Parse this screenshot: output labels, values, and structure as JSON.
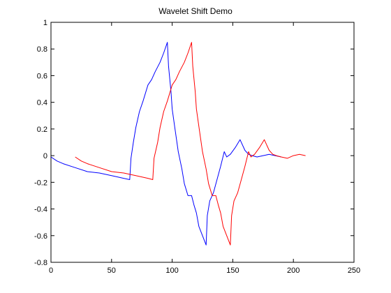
{
  "chart_data": {
    "type": "line",
    "title": "Wavelet Shift Demo",
    "xlabel": "",
    "ylabel": "",
    "xlim": [
      0,
      250
    ],
    "ylim": [
      -0.8,
      1
    ],
    "xticks": [
      0,
      50,
      100,
      150,
      200,
      250
    ],
    "yticks": [
      -0.8,
      -0.6,
      -0.4,
      -0.2,
      0,
      0.2,
      0.4,
      0.6,
      0.8,
      1
    ],
    "grid": false,
    "legend": "none",
    "series": [
      {
        "color": "#0000ff",
        "x": [
          0,
          5,
          10,
          20,
          30,
          40,
          50,
          60,
          65,
          66,
          68,
          70,
          73,
          76,
          80,
          83,
          86,
          90,
          93,
          96,
          97,
          99,
          100,
          102,
          105,
          108,
          110,
          113,
          116,
          118,
          120,
          122,
          125,
          128,
          129,
          131,
          134,
          137,
          140,
          143,
          145,
          148,
          152,
          156,
          160,
          163,
          166,
          170,
          175,
          180,
          185,
          190
        ],
        "values": [
          -0.01,
          -0.04,
          -0.06,
          -0.09,
          -0.12,
          -0.13,
          -0.15,
          -0.17,
          -0.18,
          -0.02,
          0.1,
          0.21,
          0.33,
          0.41,
          0.53,
          0.57,
          0.63,
          0.7,
          0.77,
          0.85,
          0.67,
          0.48,
          0.35,
          0.22,
          0.03,
          -0.1,
          -0.21,
          -0.3,
          -0.3,
          -0.37,
          -0.43,
          -0.53,
          -0.6,
          -0.67,
          -0.45,
          -0.34,
          -0.28,
          -0.18,
          -0.08,
          0.03,
          -0.01,
          0.01,
          0.06,
          0.12,
          0.04,
          0.01,
          0.0,
          -0.01,
          0.0,
          0.01,
          0.0,
          -0.01
        ]
      },
      {
        "color": "#ff0000",
        "x": [
          20,
          25,
          30,
          40,
          50,
          60,
          70,
          80,
          84,
          85,
          88,
          90,
          93,
          96,
          100,
          103,
          106,
          110,
          113,
          116,
          117,
          119,
          120,
          122,
          125,
          128,
          130,
          133,
          136,
          138,
          140,
          142,
          145,
          148,
          149,
          151,
          154,
          157,
          160,
          163,
          165,
          168,
          172,
          176,
          180,
          183,
          186,
          190,
          195,
          200,
          205,
          210
        ],
        "values": [
          -0.01,
          -0.04,
          -0.06,
          -0.09,
          -0.12,
          -0.13,
          -0.15,
          -0.17,
          -0.18,
          -0.02,
          0.1,
          0.21,
          0.33,
          0.41,
          0.53,
          0.57,
          0.63,
          0.7,
          0.77,
          0.85,
          0.67,
          0.48,
          0.35,
          0.22,
          0.03,
          -0.1,
          -0.21,
          -0.3,
          -0.3,
          -0.37,
          -0.43,
          -0.53,
          -0.6,
          -0.67,
          -0.45,
          -0.34,
          -0.28,
          -0.18,
          -0.08,
          0.03,
          -0.01,
          0.01,
          0.06,
          0.12,
          0.04,
          0.01,
          0.0,
          -0.01,
          -0.02,
          0.0,
          0.01,
          0.0
        ]
      }
    ]
  }
}
